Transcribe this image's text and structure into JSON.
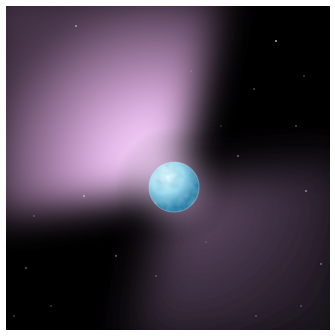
{
  "scene": {
    "subject": "pulsar",
    "background_color": "#000000",
    "beam_color_bright": "#f3c2f7",
    "beam_color_dim": "#8a6a8f",
    "star_color": "#9fdcf0",
    "star_highlight": "#e8fbff",
    "star_shadow": "#2a7fa8"
  }
}
